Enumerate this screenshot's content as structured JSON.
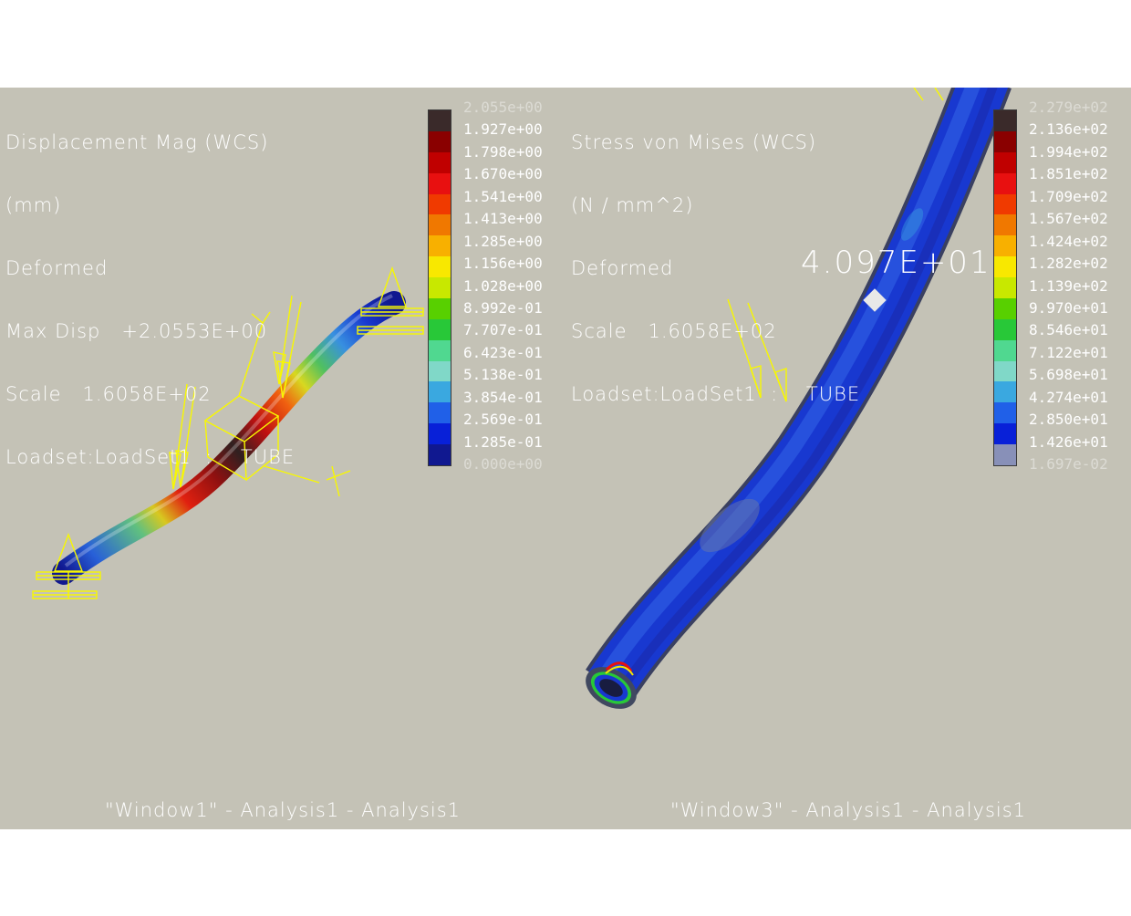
{
  "left_window": {
    "info_lines": [
      "Displacement Mag (WCS)",
      "(mm)",
      "Deformed",
      "Max Disp   +2.0553E+00",
      "Scale   1.6058E+02",
      "Loadset:LoadSet1  :    TUBE"
    ],
    "legend": {
      "labels": [
        "2.055e+00",
        "1.927e+00",
        "1.798e+00",
        "1.670e+00",
        "1.541e+00",
        "1.413e+00",
        "1.285e+00",
        "1.156e+00",
        "1.028e+00",
        "8.992e-01",
        "7.707e-01",
        "6.423e-01",
        "5.138e-01",
        "3.854e-01",
        "2.569e-01",
        "1.285e-01",
        "0.000e+00"
      ],
      "colors": [
        "#3a2a2a",
        "#8a0000",
        "#c00000",
        "#e81010",
        "#f03a00",
        "#f07800",
        "#f8b000",
        "#f8e800",
        "#c8e800",
        "#58d000",
        "#28c838",
        "#50d890",
        "#80d8c8",
        "#3aa8e0",
        "#2060e8",
        "#0820d8",
        "#101890"
      ]
    },
    "window_title": "\"Window1\"  -  Analysis1  -  Analysis1"
  },
  "right_window": {
    "info_lines": [
      "Stress von Mises (WCS)",
      "(N / mm^2)",
      "Deformed",
      "Scale   1.6058E+02",
      "Loadset:LoadSet1  :    TUBE"
    ],
    "legend": {
      "labels": [
        "2.279e+02",
        "2.136e+02",
        "1.994e+02",
        "1.851e+02",
        "1.709e+02",
        "1.567e+02",
        "1.424e+02",
        "1.282e+02",
        "1.139e+02",
        "9.970e+01",
        "8.546e+01",
        "7.122e+01",
        "5.698e+01",
        "4.274e+01",
        "2.850e+01",
        "1.426e+01",
        "1.697e-02"
      ],
      "colors": [
        "#3a2a2a",
        "#8a0000",
        "#c00000",
        "#e81010",
        "#f03a00",
        "#f07800",
        "#f8b000",
        "#f8e800",
        "#c8e800",
        "#58d000",
        "#28c838",
        "#50d890",
        "#80d8c8",
        "#3aa8e0",
        "#2060e8",
        "#0820d8",
        "#8890b8"
      ]
    },
    "probe_value": "4.097E+01",
    "window_title": "\"Window3\"  -  Analysis1  -  Analysis1"
  },
  "colors": {
    "background": "#c4c2b6",
    "constraint": "#f8f800",
    "tube_blue": "#1a3ad8"
  }
}
